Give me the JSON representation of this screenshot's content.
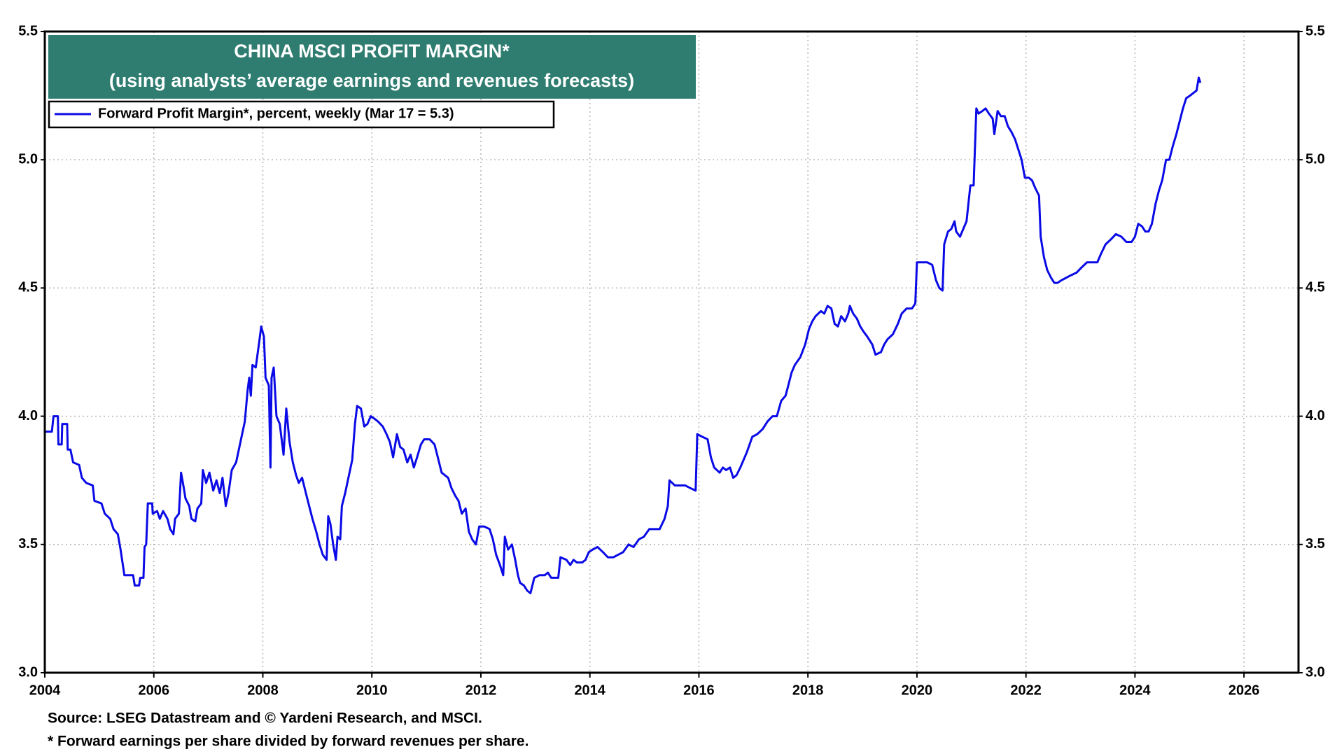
{
  "chart_data": {
    "type": "line",
    "title": "CHINA MSCI PROFIT MARGIN*",
    "subtitle": "(using analysts’ average earnings and revenues forecasts)",
    "source": "Source: LSEG Datastream and © Yardeni Research, and MSCI.",
    "note": "* Forward earnings per share divided by forward revenues per share.",
    "xlim": [
      2004,
      2027
    ],
    "xticks": [
      2004,
      2006,
      2008,
      2010,
      2012,
      2014,
      2016,
      2018,
      2020,
      2022,
      2024,
      2026
    ],
    "ylim": [
      3,
      5.5
    ],
    "yticks": [
      {
        "value": 3,
        "label": "3.0"
      },
      3.5,
      {
        "value": 4,
        "label": "4.0"
      },
      4.5,
      {
        "value": 5,
        "label": "5.0"
      },
      5.5
    ],
    "grid": true,
    "legend": "upper left",
    "x": [
      2004.0,
      2004.13,
      2004.16,
      2004.24,
      2004.25,
      2004.31,
      2004.32,
      2004.41,
      2004.42,
      2004.47,
      2004.52,
      2004.63,
      2004.68,
      2004.76,
      2004.88,
      2004.91,
      2005.04,
      2005.1,
      2005.2,
      2005.26,
      2005.34,
      2005.39,
      2005.46,
      2005.62,
      2005.65,
      2005.73,
      2005.75,
      2005.81,
      2005.83,
      2005.86,
      2005.89,
      2005.97,
      2005.98,
      2006.06,
      2006.11,
      2006.17,
      2006.25,
      2006.3,
      2006.36,
      2006.39,
      2006.46,
      2006.5,
      2006.55,
      2006.58,
      2006.65,
      2006.69,
      2006.76,
      2006.8,
      2006.87,
      2006.9,
      2006.96,
      2007.02,
      2007.09,
      2007.15,
      2007.21,
      2007.26,
      2007.32,
      2007.37,
      2007.43,
      2007.51,
      2007.59,
      2007.67,
      2007.72,
      2007.75,
      2007.78,
      2007.81,
      2007.87,
      2007.94,
      2007.97,
      2008.02,
      2008.05,
      2008.11,
      2008.14,
      2008.16,
      2008.2,
      2008.25,
      2008.31,
      2008.38,
      2008.43,
      2008.49,
      2008.55,
      2008.61,
      2008.66,
      2008.72,
      2008.79,
      2008.85,
      2008.91,
      2008.98,
      2009.04,
      2009.1,
      2009.17,
      2009.2,
      2009.24,
      2009.29,
      2009.34,
      2009.37,
      2009.42,
      2009.45,
      2009.51,
      2009.57,
      2009.64,
      2009.69,
      2009.73,
      2009.8,
      2009.86,
      2009.92,
      2009.98,
      2010.05,
      2010.11,
      2010.2,
      2010.27,
      2010.33,
      2010.39,
      2010.46,
      2010.52,
      2010.58,
      2010.65,
      2010.71,
      2010.77,
      2010.83,
      2010.9,
      2010.96,
      2011.06,
      2011.15,
      2011.21,
      2011.28,
      2011.34,
      2011.4,
      2011.46,
      2011.53,
      2011.59,
      2011.65,
      2011.72,
      2011.78,
      2011.84,
      2011.91,
      2011.97,
      2012.06,
      2012.16,
      2012.22,
      2012.28,
      2012.35,
      2012.41,
      2012.44,
      2012.5,
      2012.57,
      2012.63,
      2012.68,
      2012.72,
      2012.79,
      2012.85,
      2012.91,
      2012.98,
      2013.07,
      2013.17,
      2013.23,
      2013.29,
      2013.35,
      2013.42,
      2013.46,
      2013.57,
      2013.64,
      2013.7,
      2013.76,
      2013.86,
      2013.92,
      2013.98,
      2014.05,
      2014.14,
      2014.24,
      2014.33,
      2014.43,
      2014.52,
      2014.61,
      2014.71,
      2014.8,
      2014.9,
      2014.99,
      2015.09,
      2015.18,
      2015.28,
      2015.37,
      2015.43,
      2015.46,
      2015.56,
      2015.65,
      2015.75,
      2015.84,
      2015.94,
      2015.97,
      2016.06,
      2016.16,
      2016.22,
      2016.28,
      2016.38,
      2016.44,
      2016.5,
      2016.57,
      2016.63,
      2016.69,
      2016.76,
      2016.82,
      2016.88,
      2016.98,
      2017.07,
      2017.17,
      2017.26,
      2017.35,
      2017.43,
      2017.51,
      2017.59,
      2017.64,
      2017.7,
      2017.76,
      2017.86,
      2017.95,
      2018.02,
      2018.08,
      2018.14,
      2018.24,
      2018.3,
      2018.36,
      2018.43,
      2018.49,
      2018.55,
      2018.61,
      2018.68,
      2018.74,
      2018.77,
      2018.83,
      2018.9,
      2018.96,
      2019.02,
      2019.09,
      2019.18,
      2019.24,
      2019.34,
      2019.4,
      2019.46,
      2019.56,
      2019.65,
      2019.72,
      2019.81,
      2019.91,
      2019.97,
      2020.0,
      2020.09,
      2020.19,
      2020.28,
      2020.35,
      2020.41,
      2020.47,
      2020.5,
      2020.57,
      2020.63,
      2020.69,
      2020.72,
      2020.79,
      2020.85,
      2020.91,
      2020.98,
      2021.04,
      2021.09,
      2021.13,
      2021.2,
      2021.26,
      2021.32,
      2021.39,
      2021.42,
      2021.48,
      2021.54,
      2021.61,
      2021.67,
      2021.73,
      2021.8,
      2021.86,
      2021.92,
      2021.98,
      2022.05,
      2022.11,
      2022.17,
      2022.24,
      2022.27,
      2022.33,
      2022.39,
      2022.46,
      2022.52,
      2022.58,
      2022.65,
      2022.74,
      2022.83,
      2022.93,
      2023.02,
      2023.12,
      2023.21,
      2023.31,
      2023.37,
      2023.46,
      2023.56,
      2023.65,
      2023.75,
      2023.84,
      2023.94,
      2024.0,
      2024.06,
      2024.13,
      2024.19,
      2024.25,
      2024.31,
      2024.38,
      2024.44,
      2024.5,
      2024.57,
      2024.63,
      2024.69,
      2024.76,
      2024.82,
      2024.88,
      2024.94,
      2025.01,
      2025.07,
      2025.13,
      2025.17,
      2025.2
    ],
    "series": [
      {
        "name": "Forward Profit Margin*, percent, weekly (Mar 17 = 5.3)",
        "color": "#0a0ae6",
        "values": [
          3.94,
          3.94,
          4.0,
          4.0,
          3.89,
          3.89,
          3.97,
          3.97,
          3.87,
          3.87,
          3.82,
          3.81,
          3.76,
          3.74,
          3.73,
          3.67,
          3.66,
          3.62,
          3.6,
          3.56,
          3.54,
          3.48,
          3.38,
          3.38,
          3.34,
          3.34,
          3.37,
          3.37,
          3.49,
          3.5,
          3.66,
          3.66,
          3.62,
          3.63,
          3.6,
          3.63,
          3.6,
          3.56,
          3.54,
          3.6,
          3.62,
          3.78,
          3.72,
          3.68,
          3.65,
          3.6,
          3.59,
          3.64,
          3.66,
          3.79,
          3.74,
          3.78,
          3.71,
          3.75,
          3.7,
          3.76,
          3.65,
          3.7,
          3.79,
          3.82,
          3.9,
          3.98,
          4.1,
          4.15,
          4.08,
          4.2,
          4.19,
          4.3,
          4.35,
          4.31,
          4.15,
          4.12,
          3.8,
          4.15,
          4.19,
          4.0,
          3.97,
          3.85,
          4.03,
          3.9,
          3.82,
          3.77,
          3.74,
          3.76,
          3.7,
          3.65,
          3.6,
          3.55,
          3.5,
          3.46,
          3.44,
          3.61,
          3.58,
          3.5,
          3.44,
          3.53,
          3.52,
          3.65,
          3.7,
          3.76,
          3.83,
          3.97,
          4.04,
          4.03,
          3.96,
          3.97,
          4.0,
          3.99,
          3.98,
          3.96,
          3.93,
          3.9,
          3.84,
          3.93,
          3.88,
          3.87,
          3.82,
          3.85,
          3.8,
          3.84,
          3.89,
          3.91,
          3.91,
          3.89,
          3.84,
          3.78,
          3.77,
          3.76,
          3.72,
          3.69,
          3.67,
          3.62,
          3.64,
          3.55,
          3.52,
          3.5,
          3.57,
          3.57,
          3.56,
          3.52,
          3.46,
          3.42,
          3.38,
          3.53,
          3.48,
          3.5,
          3.44,
          3.38,
          3.35,
          3.34,
          3.32,
          3.31,
          3.37,
          3.38,
          3.38,
          3.39,
          3.37,
          3.37,
          3.37,
          3.45,
          3.44,
          3.42,
          3.44,
          3.43,
          3.43,
          3.44,
          3.47,
          3.48,
          3.49,
          3.47,
          3.45,
          3.45,
          3.46,
          3.47,
          3.5,
          3.49,
          3.52,
          3.53,
          3.56,
          3.56,
          3.56,
          3.6,
          3.65,
          3.75,
          3.73,
          3.73,
          3.73,
          3.72,
          3.71,
          3.93,
          3.92,
          3.91,
          3.84,
          3.8,
          3.78,
          3.8,
          3.79,
          3.8,
          3.76,
          3.77,
          3.8,
          3.83,
          3.86,
          3.92,
          3.93,
          3.95,
          3.98,
          4.0,
          4.0,
          4.06,
          4.08,
          4.12,
          4.17,
          4.2,
          4.23,
          4.28,
          4.34,
          4.37,
          4.39,
          4.41,
          4.4,
          4.43,
          4.42,
          4.36,
          4.35,
          4.39,
          4.37,
          4.4,
          4.43,
          4.4,
          4.38,
          4.35,
          4.33,
          4.31,
          4.28,
          4.24,
          4.25,
          4.28,
          4.3,
          4.32,
          4.36,
          4.4,
          4.42,
          4.42,
          4.44,
          4.6,
          4.6,
          4.6,
          4.59,
          4.53,
          4.5,
          4.49,
          4.67,
          4.72,
          4.73,
          4.76,
          4.72,
          4.7,
          4.73,
          4.76,
          4.9,
          4.9,
          5.2,
          5.18,
          5.19,
          5.2,
          5.18,
          5.16,
          5.1,
          5.19,
          5.17,
          5.17,
          5.13,
          5.11,
          5.08,
          5.04,
          5.0,
          4.93,
          4.93,
          4.92,
          4.89,
          4.86,
          4.7,
          4.62,
          4.57,
          4.54,
          4.52,
          4.52,
          4.53,
          4.54,
          4.55,
          4.56,
          4.58,
          4.6,
          4.6,
          4.6,
          4.63,
          4.67,
          4.69,
          4.71,
          4.7,
          4.68,
          4.68,
          4.7,
          4.75,
          4.74,
          4.72,
          4.72,
          4.75,
          4.83,
          4.88,
          4.92,
          5.0,
          5.0,
          5.05,
          5.1,
          5.15,
          5.2,
          5.24,
          5.25,
          5.26,
          5.27,
          5.32,
          5.3
        ]
      }
    ]
  }
}
